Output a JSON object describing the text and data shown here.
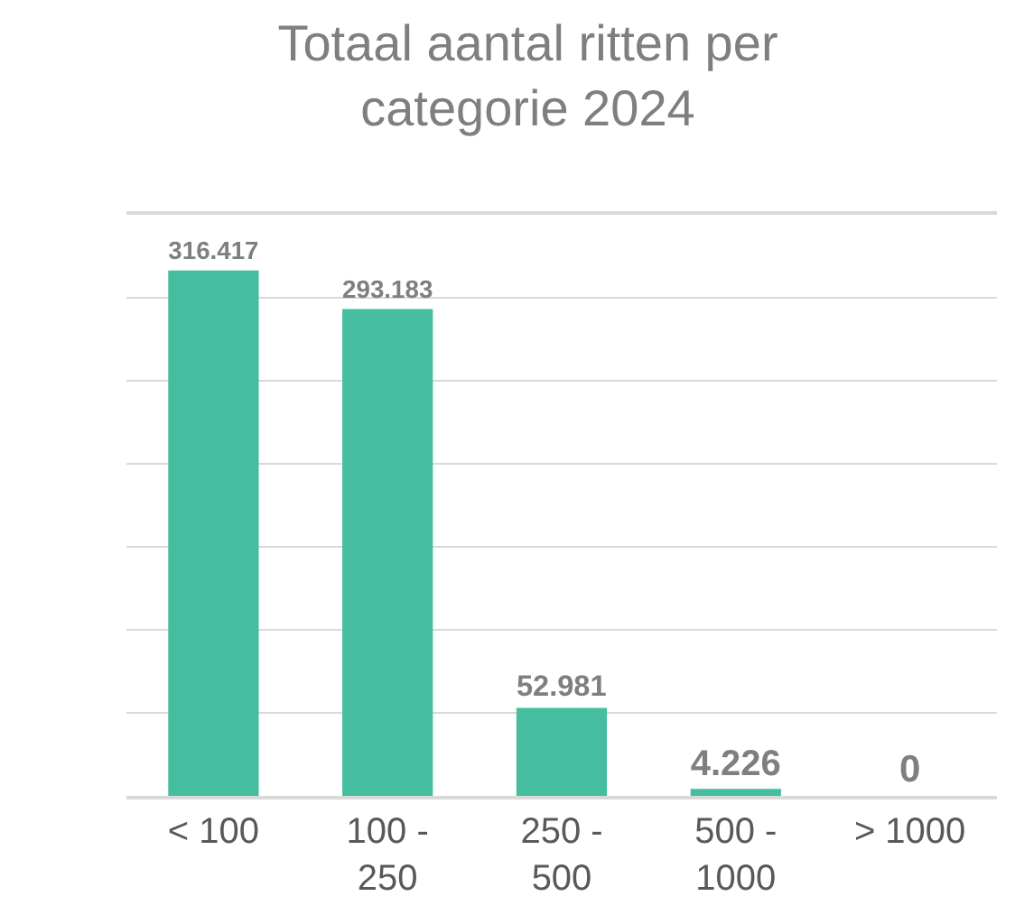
{
  "chart_data": {
    "type": "bar",
    "title": "Totaal aantal ritten per categorie 2024",
    "categories": [
      "< 100",
      "100 - 250",
      "250 - 500",
      "500 - 1000",
      "> 1000"
    ],
    "values": [
      316417,
      293183,
      52981,
      4226,
      0
    ],
    "value_labels": [
      "316.417",
      "293.183",
      "52.981",
      "4.226",
      "0"
    ],
    "color": "#45bd9f",
    "ylim": [
      0,
      350000
    ],
    "yticks": [
      {
        "value": 0,
        "label": null
      },
      {
        "value": 50000,
        "label": null
      },
      {
        "value": 100000,
        "label": null
      },
      {
        "value": 150000,
        "label": null
      },
      {
        "value": 200000,
        "label": null
      },
      {
        "value": 250000,
        "label": null
      },
      {
        "value": 300000,
        "label": null
      },
      {
        "value": 350000,
        "label": null
      }
    ],
    "grid": "y",
    "tick_labels": "x"
  }
}
